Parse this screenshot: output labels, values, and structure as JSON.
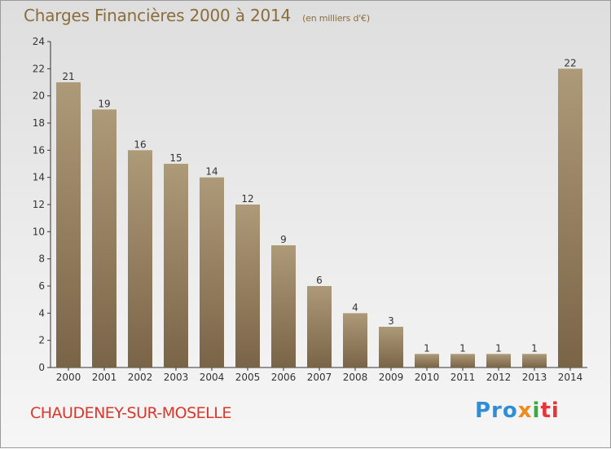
{
  "title": "Charges Financières 2000 à 2014",
  "unit_label": "(en milliers d'€)",
  "city": "CHAUDENEY-SUR-MOSELLE",
  "logo": {
    "p1": "Pro",
    "p2": "x",
    "p3": "i",
    "p4": "ti"
  },
  "colors": {
    "bar_light": "#a99674",
    "bar_dark": "#7a6448",
    "title": "#8a6d3b",
    "city": "#d9372b"
  },
  "chart_data": {
    "type": "bar",
    "categories": [
      "2000",
      "2001",
      "2002",
      "2003",
      "2004",
      "2005",
      "2006",
      "2007",
      "2008",
      "2009",
      "2010",
      "2011",
      "2012",
      "2013",
      "2014"
    ],
    "values": [
      21,
      19,
      16,
      15,
      14,
      12,
      9,
      6,
      4,
      3,
      1,
      1,
      1,
      1,
      22
    ],
    "ylim": [
      0,
      24
    ],
    "yticks": [
      0,
      2,
      4,
      6,
      8,
      10,
      12,
      14,
      16,
      18,
      20,
      22,
      24
    ],
    "grid": false,
    "legend": "none"
  }
}
